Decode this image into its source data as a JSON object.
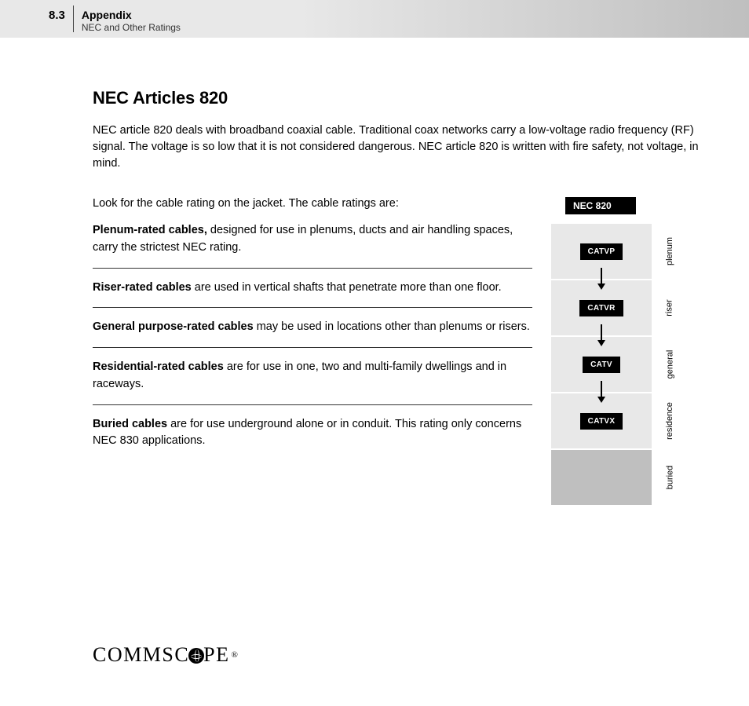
{
  "header": {
    "section_number": "8.3",
    "title": "Appendix",
    "subtitle": "NEC and Other Ratings"
  },
  "main": {
    "title": "NEC Articles 820",
    "intro": "NEC article 820 deals with broadband coaxial cable. Traditional coax networks carry a low-voltage radio frequency (RF) signal. The voltage is so low that it is not considered dangerous. NEC article 820 is written with fire safety, not voltage, in mind.",
    "lead": "Look for the cable rating on the jacket. The cable ratings are:",
    "ratings": [
      {
        "bold": "Plenum-rated cables,",
        "rest": " designed for use in plenums, ducts and air handling spaces, carry the strictest NEC rating."
      },
      {
        "bold": "Riser-rated cables",
        "rest": " are used in vertical shafts that penetrate more than one floor."
      },
      {
        "bold": "General purpose-rated cables",
        "rest": " may be used in locations other than plenums or risers."
      },
      {
        "bold": "Residential-rated cables",
        "rest": " are for use in one, two and multi-family dwellings and in raceways."
      },
      {
        "bold": "Buried cables",
        "rest": " are for use underground alone or in conduit. This rating only concerns NEC 830 applications."
      }
    ]
  },
  "diagram": {
    "header": "NEC 820",
    "rows": [
      {
        "node": "CATVP",
        "label": "plenum",
        "arrow": true
      },
      {
        "node": "CATVR",
        "label": "riser",
        "arrow": true
      },
      {
        "node": "CATV",
        "label": "general",
        "arrow": true
      },
      {
        "node": "CATVX",
        "label": "residence",
        "arrow": false
      },
      {
        "node": "",
        "label": "buried",
        "arrow": false,
        "empty": true
      }
    ],
    "colors": {
      "cell_bg": "#e8e8e8",
      "empty_bg": "#bfbfbf",
      "node_bg": "#000000",
      "node_text": "#ffffff"
    }
  },
  "logo": {
    "prefix": "COMMSC",
    "suffix": "PE",
    "reg": "®"
  }
}
